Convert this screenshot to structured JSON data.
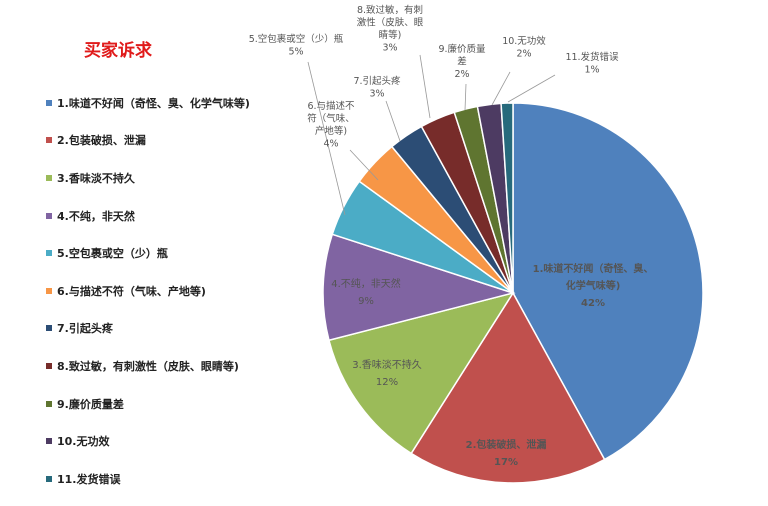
{
  "chart_data": {
    "type": "pie",
    "title": "买家诉求",
    "legend_position": "left",
    "slices": [
      {
        "legend": "1.味道不好闻（奇怪、臭、化学气味等)",
        "label": [
          "1.味道不好闻（奇怪、臭、",
          "化学气味等)"
        ],
        "value": 42,
        "pct_label": "42%",
        "color": "#4f81bd"
      },
      {
        "legend": "2.包装破损、泄漏",
        "label": [
          "2.包装破损、泄漏"
        ],
        "value": 17,
        "pct_label": "17%",
        "color": "#c0504d"
      },
      {
        "legend": "3.香味淡不持久",
        "label": [
          "3.香味淡不持久"
        ],
        "value": 12,
        "pct_label": "12%",
        "color": "#9bbb59"
      },
      {
        "legend": "4.不纯，非天然",
        "label": [
          "4.不纯，非天然"
        ],
        "value": 9,
        "pct_label": "9%",
        "color": "#8064a2"
      },
      {
        "legend": "5.空包裹或空（少）瓶",
        "label": [
          "5.空包裹或空（少）瓶"
        ],
        "value": 5,
        "pct_label": "5%",
        "color": "#4bacc6"
      },
      {
        "legend": "6.与描述不符（气味、产地等)",
        "label": [
          "6.与描述不",
          "符（气味、",
          "产地等)"
        ],
        "value": 4,
        "pct_label": "4%",
        "color": "#f79646"
      },
      {
        "legend": "7.引起头疼",
        "label": [
          "7.引起头疼"
        ],
        "value": 3,
        "pct_label": "3%",
        "color": "#2c4d75"
      },
      {
        "legend": "8.致过敏，有刺激性（皮肤、眼睛等)",
        "label": [
          "8.致过敏，有刺",
          "激性（皮肤、眼",
          "睛等)"
        ],
        "value": 3,
        "pct_label": "3%",
        "color": "#772c2a"
      },
      {
        "legend": "9.廉价质量差",
        "label": [
          "9.廉价质量",
          "差"
        ],
        "value": 2,
        "pct_label": "2%",
        "color": "#5f7530"
      },
      {
        "legend": "10.无功效",
        "label": [
          "10.无功效"
        ],
        "value": 2,
        "pct_label": "2%",
        "color": "#4d3b62"
      },
      {
        "legend": "11.发货错误",
        "label": [
          "11.发货错误"
        ],
        "value": 1,
        "pct_label": "1%",
        "color": "#276a7c"
      }
    ]
  }
}
